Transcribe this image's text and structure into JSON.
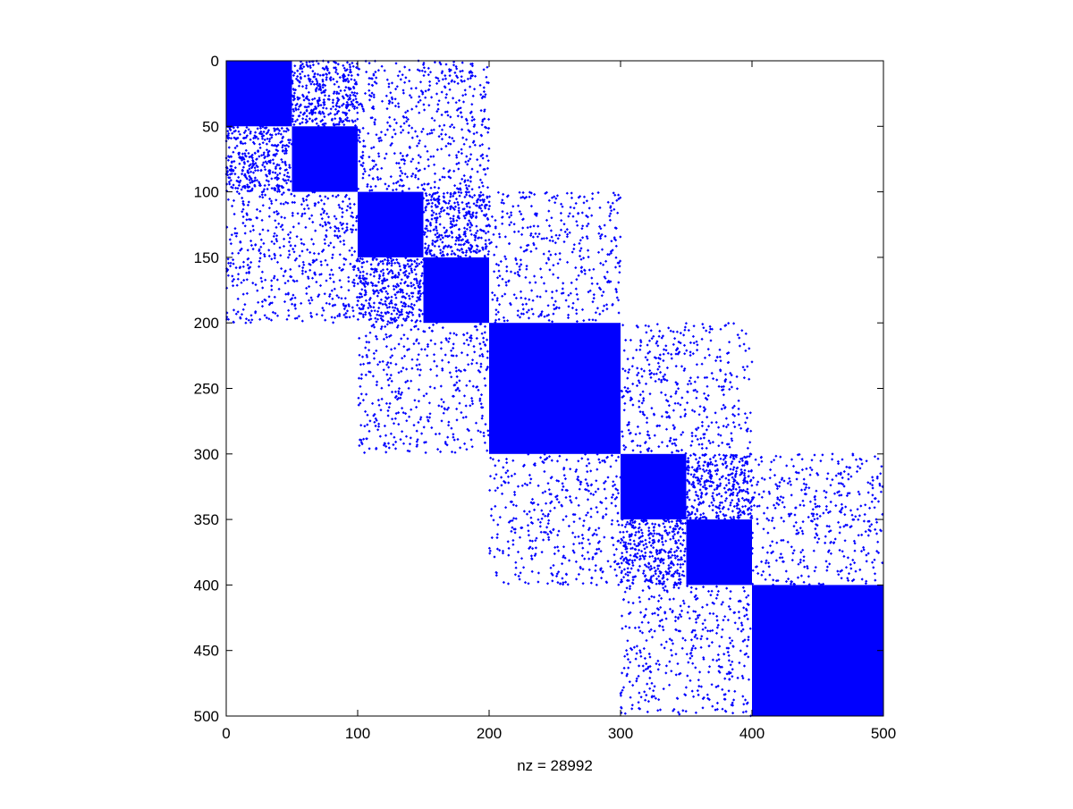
{
  "chart_data": {
    "type": "scatter",
    "subtype": "sparsity-pattern",
    "title": "",
    "xlabel": "nz = 28992",
    "ylabel": "",
    "xlim": [
      0,
      500
    ],
    "ylim": [
      0,
      500
    ],
    "y_reversed": true,
    "xticks": [
      0,
      100,
      200,
      300,
      400,
      500
    ],
    "yticks": [
      0,
      50,
      100,
      150,
      200,
      250,
      300,
      350,
      400,
      450,
      500
    ],
    "grid": false,
    "legend": "none",
    "marker_color": "#0000ff",
    "dense_blocks": [
      {
        "rows": [
          0,
          50
        ],
        "cols": [
          0,
          50
        ]
      },
      {
        "rows": [
          50,
          100
        ],
        "cols": [
          50,
          100
        ]
      },
      {
        "rows": [
          100,
          150
        ],
        "cols": [
          100,
          150
        ]
      },
      {
        "rows": [
          150,
          200
        ],
        "cols": [
          150,
          200
        ]
      },
      {
        "rows": [
          200,
          300
        ],
        "cols": [
          200,
          300
        ]
      },
      {
        "rows": [
          300,
          350
        ],
        "cols": [
          300,
          350
        ]
      },
      {
        "rows": [
          350,
          400
        ],
        "cols": [
          350,
          400
        ]
      },
      {
        "rows": [
          400,
          500
        ],
        "cols": [
          400,
          500
        ]
      }
    ],
    "sparse_blocks": [
      {
        "rows": [
          0,
          50
        ],
        "cols": [
          50,
          100
        ],
        "density": 0.3
      },
      {
        "rows": [
          50,
          100
        ],
        "cols": [
          0,
          50
        ],
        "density": 0.3
      },
      {
        "rows": [
          0,
          100
        ],
        "cols": [
          100,
          200
        ],
        "density": 0.1
      },
      {
        "rows": [
          100,
          200
        ],
        "cols": [
          0,
          100
        ],
        "density": 0.1
      },
      {
        "rows": [
          100,
          150
        ],
        "cols": [
          150,
          200
        ],
        "density": 0.3
      },
      {
        "rows": [
          150,
          200
        ],
        "cols": [
          100,
          150
        ],
        "density": 0.3
      },
      {
        "rows": [
          100,
          200
        ],
        "cols": [
          200,
          300
        ],
        "density": 0.08
      },
      {
        "rows": [
          200,
          300
        ],
        "cols": [
          100,
          200
        ],
        "density": 0.08
      },
      {
        "rows": [
          200,
          300
        ],
        "cols": [
          300,
          400
        ],
        "density": 0.08
      },
      {
        "rows": [
          300,
          400
        ],
        "cols": [
          200,
          300
        ],
        "density": 0.08
      },
      {
        "rows": [
          300,
          350
        ],
        "cols": [
          350,
          400
        ],
        "density": 0.3
      },
      {
        "rows": [
          350,
          400
        ],
        "cols": [
          300,
          350
        ],
        "density": 0.3
      },
      {
        "rows": [
          300,
          400
        ],
        "cols": [
          400,
          500
        ],
        "density": 0.08
      },
      {
        "rows": [
          400,
          500
        ],
        "cols": [
          300,
          400
        ],
        "density": 0.08
      }
    ]
  }
}
